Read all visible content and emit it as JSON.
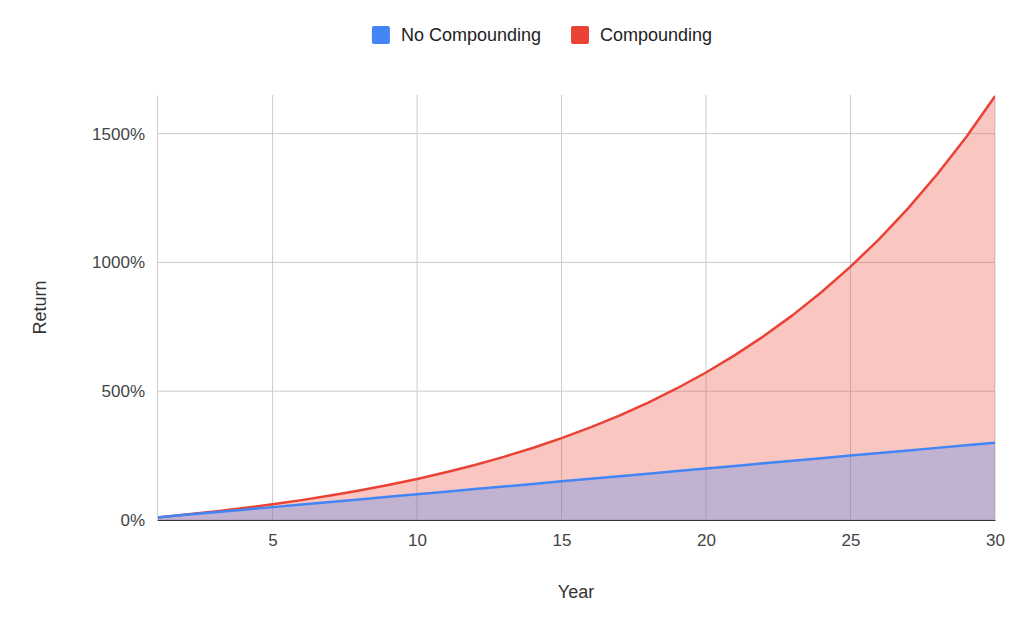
{
  "chart_data": {
    "type": "area",
    "x_label": "Year",
    "y_label": "Return",
    "x": [
      1,
      2,
      3,
      4,
      5,
      6,
      7,
      8,
      9,
      10,
      11,
      12,
      13,
      14,
      15,
      16,
      17,
      18,
      19,
      20,
      21,
      22,
      23,
      24,
      25,
      26,
      27,
      28,
      29,
      30
    ],
    "series": [
      {
        "name": "No Compounding",
        "color": "#4285f4",
        "values": [
          10,
          20,
          30,
          40,
          50,
          60,
          70,
          80,
          90,
          100,
          110,
          120,
          130,
          140,
          150,
          160,
          170,
          180,
          190,
          200,
          210,
          220,
          230,
          240,
          250,
          260,
          270,
          280,
          290,
          300
        ]
      },
      {
        "name": "Compounding",
        "color": "#ea4335",
        "values": [
          10,
          21,
          33.1,
          46.4,
          61.1,
          77.2,
          94.9,
          114.4,
          135.8,
          159.4,
          185.3,
          213.8,
          245.2,
          279.7,
          317.7,
          359.5,
          405.4,
          456,
          511.6,
          572.7,
          640,
          714,
          795.4,
          885,
          983.5,
          1091.8,
          1211,
          1342.1,
          1486.3,
          1644.9
        ]
      }
    ],
    "xlim": [
      1,
      30
    ],
    "xticks": [
      5,
      10,
      15,
      20,
      25,
      30
    ],
    "ylim": [
      0,
      1650
    ],
    "yticks": [
      {
        "value": 0,
        "label": "0%"
      },
      {
        "value": 500,
        "label": "500%"
      },
      {
        "value": 1000,
        "label": "1000%"
      },
      {
        "value": 1500,
        "label": "1500%"
      }
    ],
    "grid": true,
    "legend": "top"
  }
}
